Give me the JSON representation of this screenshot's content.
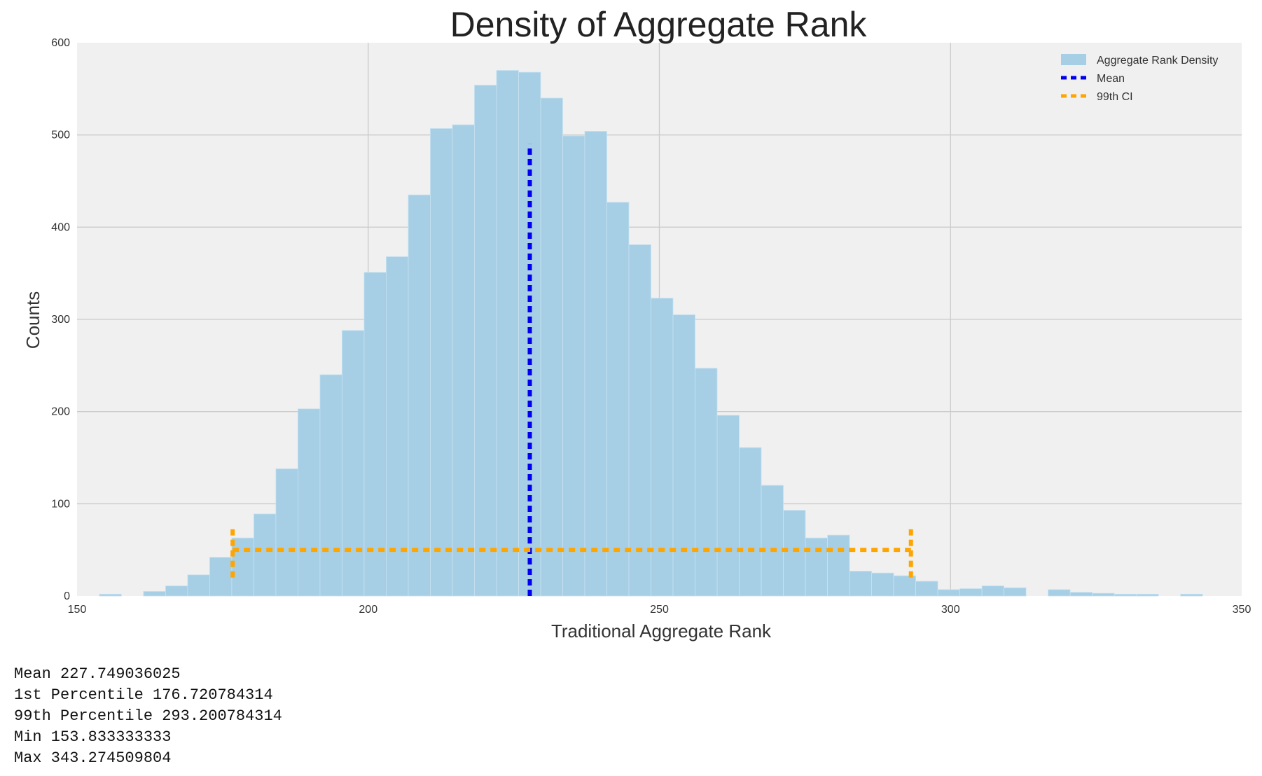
{
  "chart_data": {
    "type": "bar",
    "title": "Density of Aggregate Rank",
    "xlabel": "Traditional Aggregate Rank",
    "ylabel": "Counts",
    "xlim": [
      150,
      350
    ],
    "ylim": [
      0,
      600
    ],
    "xticks": [
      150,
      200,
      250,
      300,
      350
    ],
    "yticks": [
      0,
      100,
      200,
      300,
      400,
      500,
      600
    ],
    "grid": true,
    "legend_position": "top-right",
    "histogram": {
      "name": "Aggregate Rank Density",
      "color": "#a6cfe6",
      "bin_start": 153.833,
      "bin_width": 3.789,
      "counts": [
        2,
        0,
        5,
        11,
        23,
        42,
        63,
        89,
        138,
        203,
        240,
        288,
        351,
        368,
        435,
        507,
        511,
        554,
        570,
        568,
        540,
        499,
        504,
        427,
        381,
        323,
        305,
        247,
        196,
        161,
        120,
        93,
        63,
        66,
        27,
        25,
        22,
        16,
        7,
        8,
        11,
        9,
        0,
        7,
        4,
        3,
        2,
        2,
        0,
        2
      ]
    },
    "mean_line": {
      "name": "Mean",
      "x": 227.749,
      "y_top": 490,
      "color": "#0000ee"
    },
    "ci_line": {
      "name": "99th CI",
      "x_low": 176.721,
      "x_high": 293.201,
      "y": 50,
      "cap_low": 20,
      "cap_high": 75,
      "color": "#ffa500"
    }
  },
  "stats": [
    "Mean 227.749036025",
    "1st Percentile 176.720784314",
    "99th Percentile 293.200784314",
    "Min 153.833333333",
    "Max 343.274509804"
  ]
}
